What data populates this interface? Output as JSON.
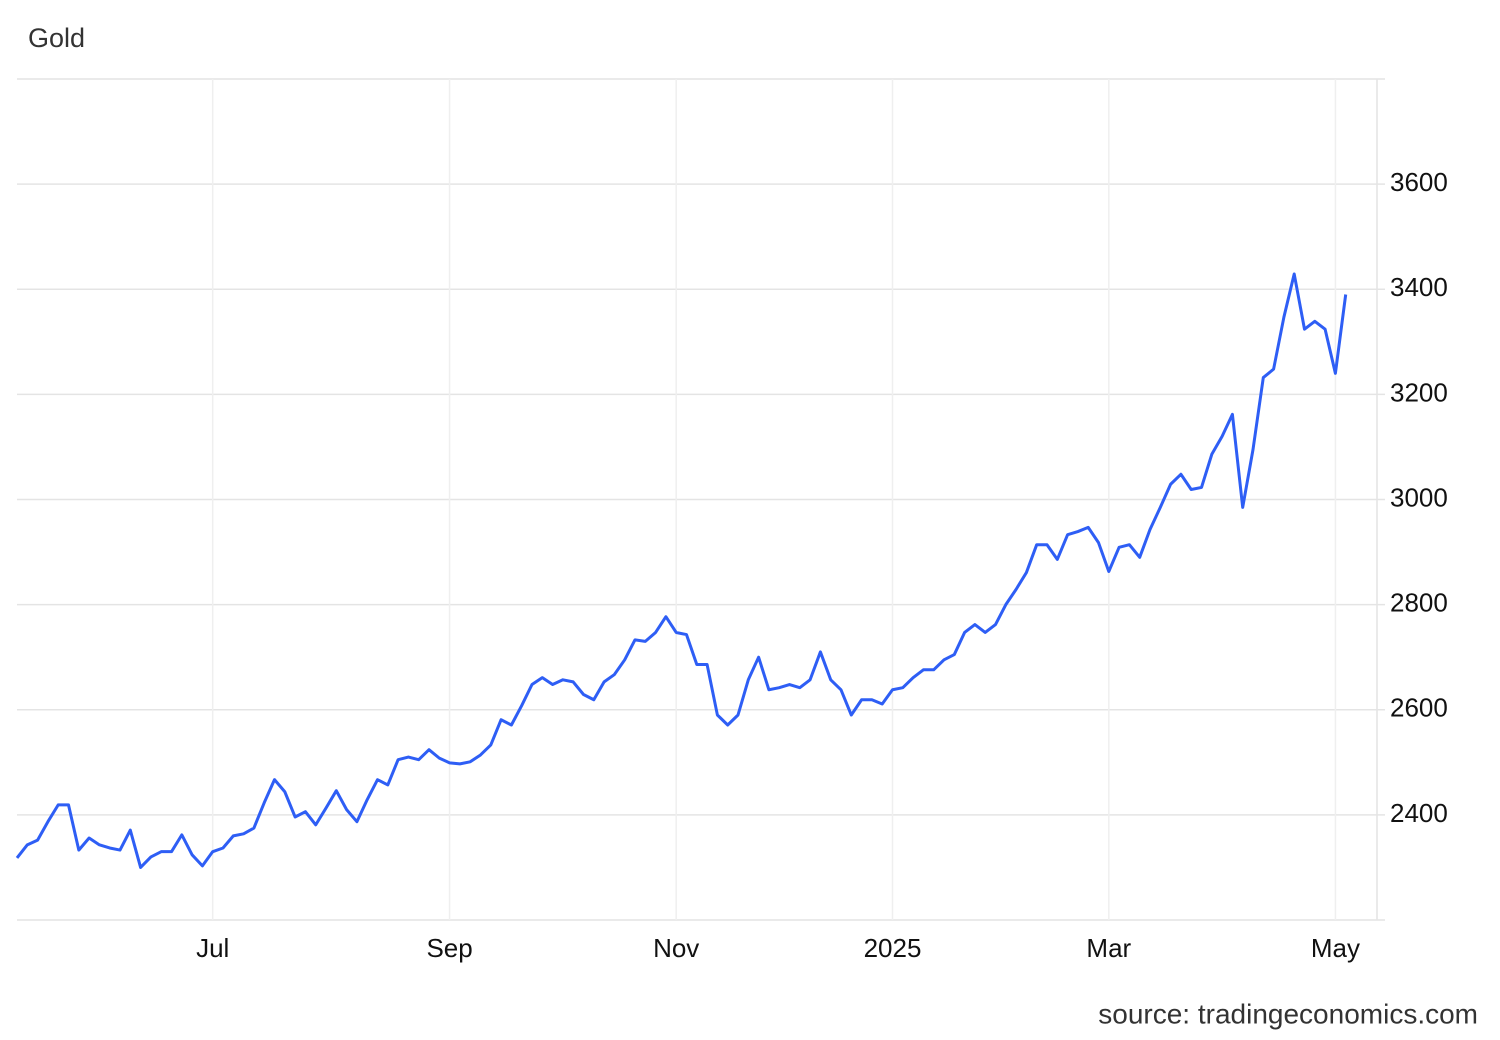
{
  "chart_data": {
    "type": "line",
    "title": "Gold",
    "source": "source: tradingeconomics.com",
    "categories": [
      null,
      null,
      null,
      null,
      null,
      null,
      null,
      null,
      null,
      null,
      null,
      null,
      null,
      null,
      null,
      null,
      null,
      null,
      null,
      "Jul",
      null,
      null,
      null,
      null,
      null,
      null,
      null,
      null,
      null,
      null,
      null,
      null,
      null,
      null,
      null,
      null,
      null,
      null,
      null,
      null,
      null,
      null,
      "Sep",
      null,
      null,
      null,
      null,
      null,
      null,
      null,
      null,
      null,
      null,
      null,
      null,
      null,
      null,
      null,
      null,
      null,
      null,
      null,
      null,
      null,
      "Nov",
      null,
      null,
      null,
      null,
      null,
      null,
      null,
      null,
      null,
      null,
      null,
      null,
      null,
      null,
      null,
      null,
      null,
      null,
      null,
      null,
      "2025",
      null,
      null,
      null,
      null,
      null,
      null,
      null,
      null,
      null,
      null,
      null,
      null,
      null,
      null,
      null,
      null,
      null,
      null,
      null,
      null,
      "Mar",
      null,
      null,
      null,
      null,
      null,
      null,
      null,
      null,
      null,
      null,
      null,
      null,
      null,
      null,
      null,
      null,
      null,
      null,
      null,
      null,
      null,
      "May",
      null
    ],
    "values": [
      2318,
      2343,
      2352,
      2387,
      2419,
      2419,
      2333,
      2356,
      2343,
      2337,
      2333,
      2371,
      2300,
      2320,
      2330,
      2330,
      2362,
      2324,
      2303,
      2330,
      2337,
      2360,
      2364,
      2375,
      2423,
      2467,
      2444,
      2396,
      2406,
      2381,
      2413,
      2446,
      2410,
      2387,
      2429,
      2467,
      2457,
      2505,
      2510,
      2505,
      2524,
      2508,
      2499,
      2497,
      2501,
      2514,
      2533,
      2581,
      2571,
      2608,
      2648,
      2661,
      2648,
      2657,
      2653,
      2629,
      2619,
      2653,
      2667,
      2695,
      2733,
      2730,
      2747,
      2777,
      2747,
      2743,
      2686,
      2686,
      2590,
      2571,
      2590,
      2657,
      2700,
      2638,
      2642,
      2648,
      2642,
      2657,
      2710,
      2657,
      2638,
      2590,
      2619,
      2619,
      2611,
      2638,
      2642,
      2661,
      2676,
      2676,
      2695,
      2705,
      2747,
      2762,
      2747,
      2762,
      2800,
      2829,
      2861,
      2914,
      2914,
      2886,
      2933,
      2939,
      2947,
      2918,
      2863,
      2909,
      2914,
      2890,
      2943,
      2985,
      3029,
      3048,
      3019,
      3023,
      3086,
      3120,
      3162,
      2985,
      3095,
      3232,
      3248,
      3347,
      3429,
      3324,
      3339,
      3324,
      3240,
      3390
    ],
    "color": "#2e5ef5",
    "ylim": [
      2200,
      3800
    ],
    "yticks": [
      2400,
      2600,
      2800,
      3000,
      3200,
      3400,
      3600
    ],
    "grid": true
  }
}
